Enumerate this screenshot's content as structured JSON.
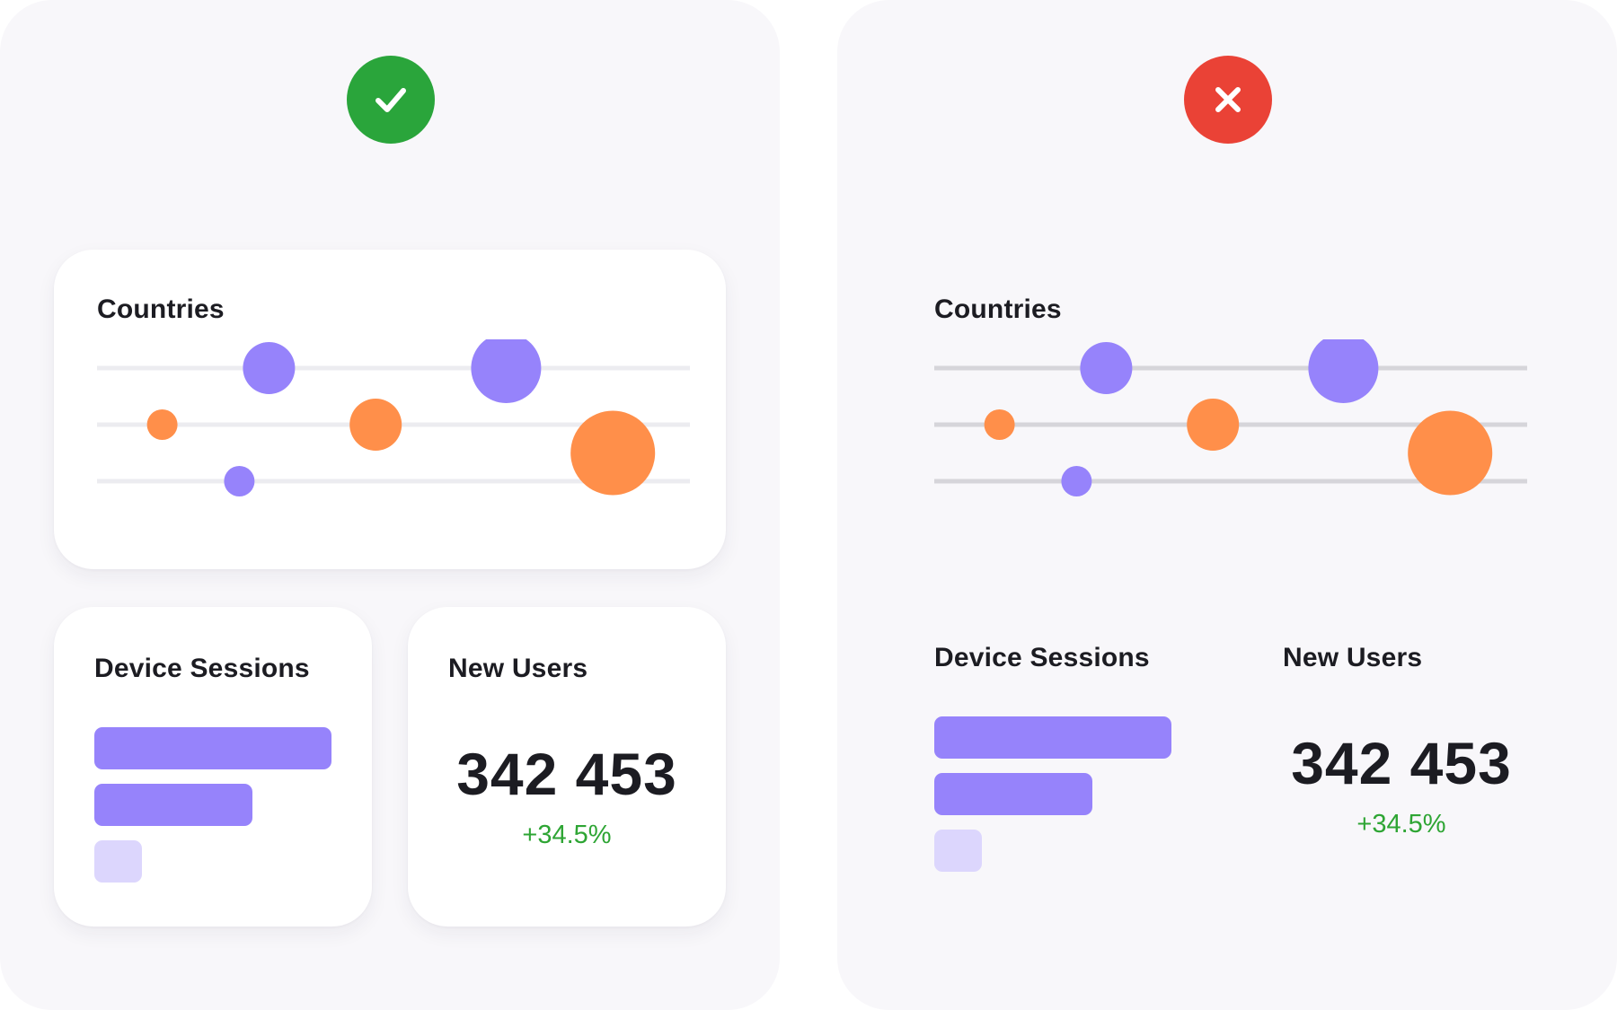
{
  "colors": {
    "purple": "#9683fb",
    "orange": "#ff8f4a",
    "light_purple": "#dcd6fd",
    "good": "#2aa53b",
    "bad": "#ea4236",
    "positive": "#2ea534"
  },
  "panels": [
    {
      "variant": "good",
      "badge_icon": "check-icon",
      "countries": {
        "title": "Countries"
      },
      "device_sessions": {
        "title": "Device Sessions",
        "bars": [
          1.0,
          0.67,
          0.2
        ]
      },
      "new_users": {
        "title": "New Users",
        "value": "342 453",
        "change": "+34.5%"
      }
    },
    {
      "variant": "bad",
      "badge_icon": "close-icon",
      "countries": {
        "title": "Countries"
      },
      "device_sessions": {
        "title": "Device Sessions",
        "bars": [
          1.0,
          0.67,
          0.2
        ]
      },
      "new_users": {
        "title": "New Users",
        "value": "342 453",
        "change": "+34.5%"
      }
    }
  ],
  "chart_data": {
    "type": "scatter",
    "title": "Countries",
    "rows": 3,
    "series": [
      {
        "color": "purple",
        "points": [
          {
            "x": 0.29,
            "row": 1,
            "size": 29
          },
          {
            "x": 0.69,
            "row": 1,
            "size": 39
          },
          {
            "x": 0.24,
            "row": 3,
            "size": 17
          }
        ]
      },
      {
        "color": "orange",
        "points": [
          {
            "x": 0.11,
            "row": 2,
            "size": 17
          },
          {
            "x": 0.47,
            "row": 2,
            "size": 29
          },
          {
            "x": 0.87,
            "row": 2.5,
            "size": 47
          }
        ]
      }
    ]
  }
}
